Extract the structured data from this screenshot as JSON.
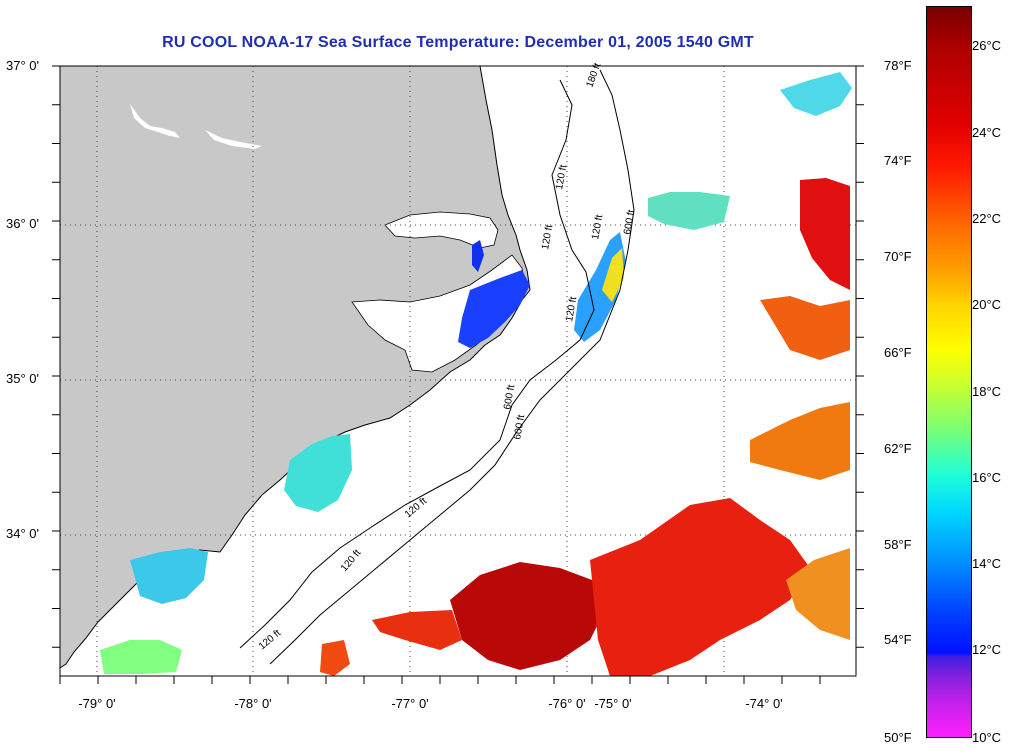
{
  "title": "RU COOL  NOAA-17  Sea Surface Temperature:  December 01, 2005 1540 GMT",
  "latitude_labels": [
    "37° 0'",
    "36° 0'",
    "35° 0'",
    "34° 0'"
  ],
  "longitude_labels": [
    "-79° 0'",
    "-78° 0'",
    "-77° 0'",
    "-76° 0'",
    "-75° 0'",
    "-74° 0'"
  ],
  "contour_labels": [
    "180 ft",
    "120 ft",
    "600 ft",
    "120 ft",
    "120 ft",
    "120 ft",
    "600 ft",
    "600 ft",
    "120 ft",
    "120 ft",
    "120 ft"
  ],
  "colorbar": {
    "fahrenheit_labels": [
      "78°F",
      "74°F",
      "70°F",
      "66°F",
      "62°F",
      "58°F",
      "54°F",
      "50°F"
    ],
    "celsius_labels": [
      "26°C",
      "24°C",
      "22°C",
      "20°C",
      "18°C",
      "16°C",
      "14°C",
      "12°C",
      "10°C"
    ]
  },
  "colors": {
    "title": "#1f2fb0",
    "land": "#c8c8c8",
    "water": "#ffffff"
  }
}
